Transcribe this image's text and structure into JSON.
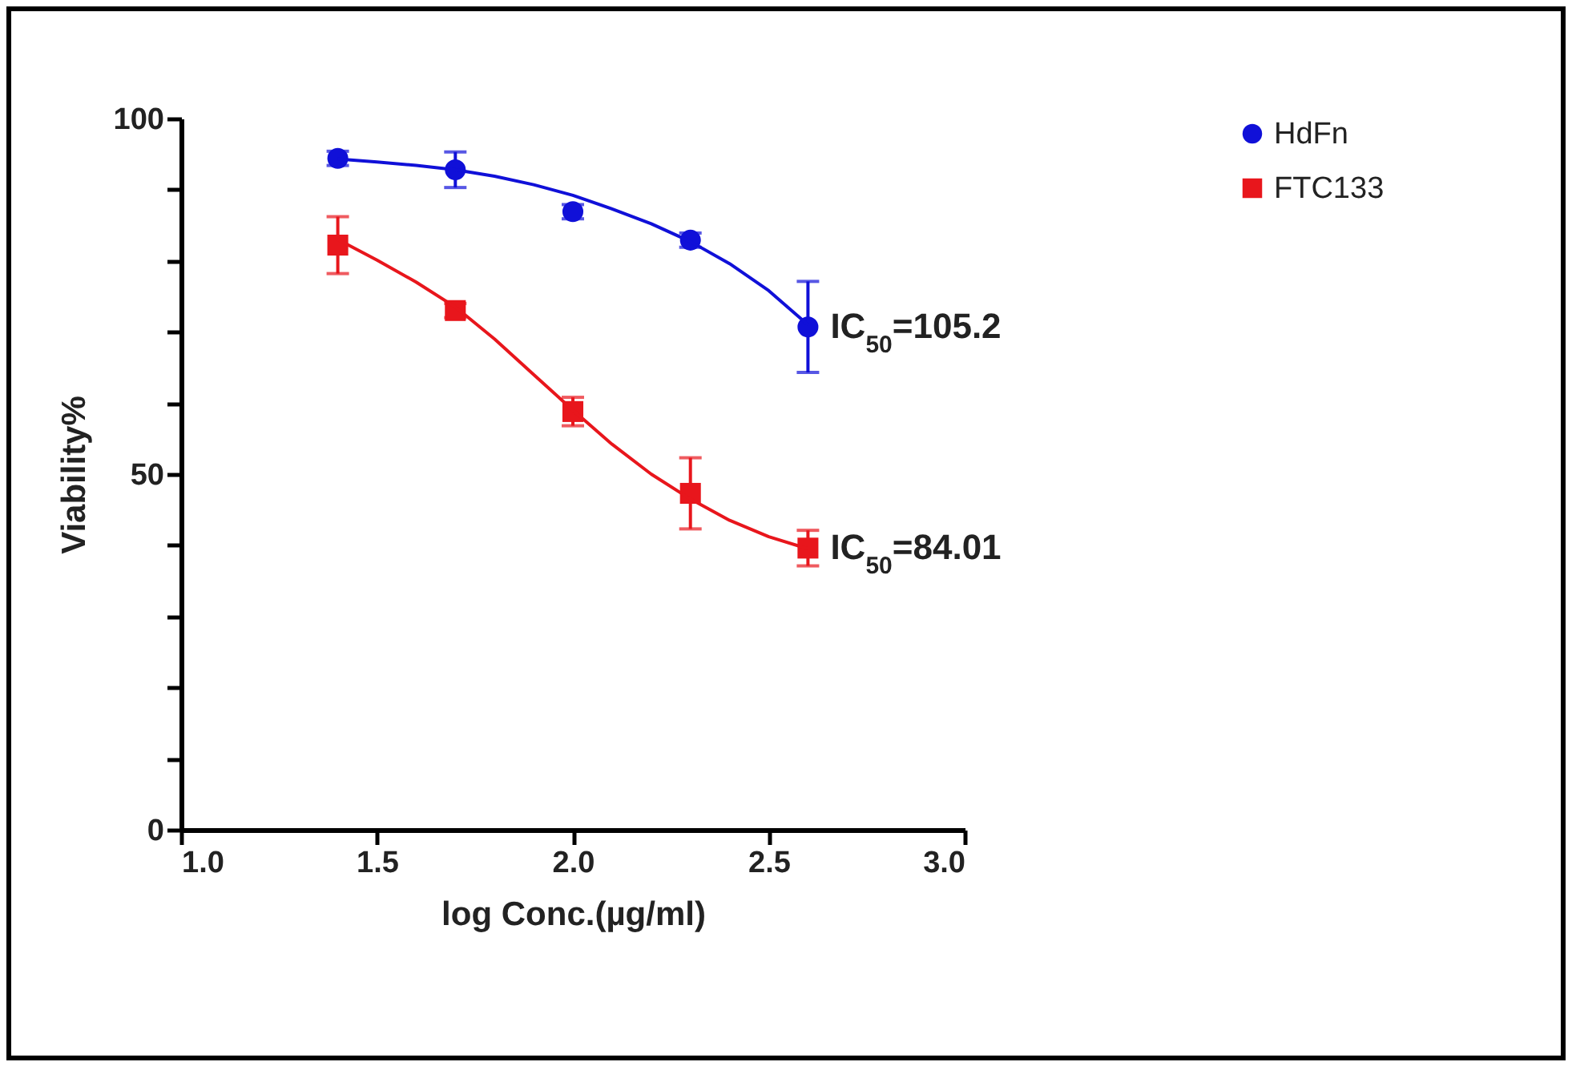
{
  "chart_data": {
    "type": "scatter",
    "xlabel": "log Conc.(µg/ml)",
    "ylabel": "Viability%",
    "xlim": [
      1.0,
      3.0
    ],
    "xticks": [
      {
        "value": 1.0,
        "label": "1.0"
      },
      {
        "value": 1.5,
        "label": "1.5"
      },
      {
        "value": 2.0,
        "label": "2.0"
      },
      {
        "value": 2.5,
        "label": "2.5"
      },
      {
        "value": 3.0,
        "label": "3.0"
      }
    ],
    "ylim": [
      0,
      100
    ],
    "yticks": [
      0,
      {
        "value": 10,
        "label": null
      },
      {
        "value": 20,
        "label": null
      },
      {
        "value": 30,
        "label": null
      },
      {
        "value": 40,
        "label": null
      },
      50,
      {
        "value": 60,
        "label": null
      },
      {
        "value": 70,
        "label": null
      },
      {
        "value": 80,
        "label": null
      },
      {
        "value": 90,
        "label": null
      },
      100
    ],
    "grid": false,
    "legend": "top right",
    "series": [
      {
        "name": "HdFn",
        "type": "scatter",
        "marker": "circle",
        "color": "#1010d8",
        "x": [
          1.4,
          1.7,
          2.0,
          2.3,
          2.6
        ],
        "values": [
          94.4,
          92.8,
          86.9,
          82.9,
          70.7
        ],
        "errors": [
          1,
          2.5,
          1,
          1,
          6.4
        ]
      },
      {
        "name": "FTC133",
        "type": "scatter",
        "marker": "square",
        "color": "#e8161c",
        "x": [
          1.4,
          1.7,
          2.0,
          2.3,
          2.6
        ],
        "values": [
          82.2,
          73.0,
          58.8,
          47.3,
          39.6
        ],
        "errors": [
          4,
          1,
          2,
          5,
          2.5
        ]
      },
      {
        "type": "line",
        "color": "#1010d8",
        "x": [
          1.4,
          1.5,
          1.6,
          1.7,
          1.8,
          1.9,
          2.0,
          2.1,
          2.2,
          2.3,
          2.4,
          2.5,
          2.6
        ],
        "values": [
          94.3,
          93.9,
          93.4,
          92.8,
          91.9,
          90.7,
          89.2,
          87.3,
          85.2,
          82.7,
          79.6,
          75.8,
          71.0
        ]
      },
      {
        "type": "line",
        "color": "#e8161c",
        "x": [
          1.4,
          1.5,
          1.6,
          1.7,
          1.8,
          1.9,
          2.0,
          2.1,
          2.2,
          2.3,
          2.4,
          2.5,
          2.6
        ],
        "values": [
          83.0,
          80.1,
          77.0,
          73.5,
          69.0,
          64.0,
          59.0,
          54.2,
          50.0,
          46.5,
          43.5,
          41.2,
          39.5
        ]
      }
    ],
    "annotations": [
      {
        "text": "IC$_{50}$=105.2",
        "x": 2.6,
        "y": 70.7
      },
      {
        "text": "IC$_{50}$=84.01",
        "x": 2.6,
        "y": 39.6
      }
    ]
  }
}
